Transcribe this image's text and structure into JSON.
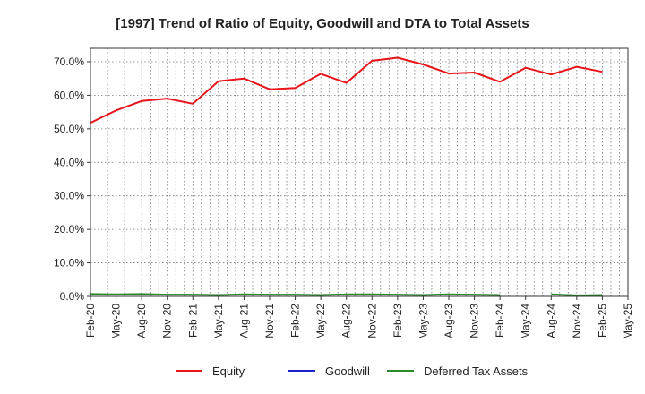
{
  "chart_data": {
    "type": "line",
    "title": "[1997]  Trend of Ratio of Equity, Goodwill and DTA to Total Assets",
    "xlabel": "",
    "ylabel": "",
    "ylim": [
      0,
      74
    ],
    "yticks": [
      0,
      10,
      20,
      30,
      40,
      50,
      60,
      70
    ],
    "ytick_labels": [
      "0.0%",
      "10.0%",
      "20.0%",
      "30.0%",
      "40.0%",
      "50.0%",
      "60.0%",
      "70.0%"
    ],
    "x": [
      "Feb-20",
      "May-20",
      "Aug-20",
      "Nov-20",
      "Feb-21",
      "May-21",
      "Aug-21",
      "Nov-21",
      "Feb-22",
      "May-22",
      "Aug-22",
      "Nov-22",
      "Feb-23",
      "May-23",
      "Aug-23",
      "Nov-23",
      "Feb-24",
      "May-24",
      "Aug-24",
      "Nov-24",
      "Feb-25",
      "May-25"
    ],
    "xtick_labels": [
      "Feb-20",
      "May-20",
      "Aug-20",
      "Nov-20",
      "Feb-21",
      "May-21",
      "Aug-21",
      "Nov-21",
      "Feb-22",
      "May-22",
      "Aug-22",
      "Nov-22",
      "Feb-23",
      "May-23",
      "Aug-23",
      "Nov-23",
      "Feb-24",
      "May-24",
      "Aug-24",
      "Nov-24",
      "Feb-25",
      "May-25"
    ],
    "grid": true,
    "legend_position": "bottom",
    "series": [
      {
        "name": "Equity",
        "color": "#e8141c",
        "values": [
          51.8,
          55.5,
          58.3,
          59.0,
          57.5,
          64.2,
          65.0,
          61.8,
          62.2,
          66.4,
          63.7,
          70.3,
          71.2,
          69.2,
          66.5,
          66.8,
          64.0,
          68.2,
          66.2,
          68.5,
          67.0,
          null
        ]
      },
      {
        "name": "Goodwill",
        "color": "#1b22c8",
        "values": [
          null,
          null,
          null,
          null,
          null,
          null,
          null,
          null,
          null,
          null,
          null,
          null,
          null,
          null,
          null,
          null,
          null,
          null,
          null,
          null,
          null,
          null
        ]
      },
      {
        "name": "Deferred Tax Assets",
        "color": "#2a8a2a",
        "values": [
          0.7,
          0.6,
          0.7,
          0.5,
          0.5,
          0.4,
          0.6,
          0.5,
          0.5,
          0.4,
          0.6,
          0.6,
          0.5,
          0.4,
          0.6,
          0.5,
          0.4,
          null,
          0.6,
          0.3,
          0.4,
          null
        ]
      }
    ]
  }
}
